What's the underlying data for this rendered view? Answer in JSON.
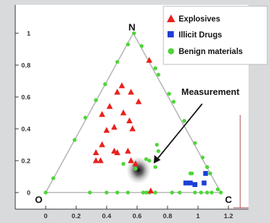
{
  "chart_data": {
    "type": "scatter",
    "title": "",
    "xlabel": "",
    "ylabel": "",
    "xlim": [
      -0.05,
      1.22
    ],
    "ylim": [
      -0.05,
      1.12
    ],
    "x_ticks": [
      "0",
      "0.2",
      "0.4",
      "0.6",
      "0.8",
      "1",
      "1.2"
    ],
    "y_ticks": [
      "0",
      "0.2",
      "0.4",
      "0.6",
      "0.8",
      "1"
    ],
    "x_tick_values": [
      0,
      0.2,
      0.4,
      0.6,
      0.8,
      1.0,
      1.2
    ],
    "y_tick_values": [
      0,
      0.2,
      0.4,
      0.6,
      0.8,
      1.0
    ],
    "triangle": {
      "vertices": [
        [
          0,
          0
        ],
        [
          1.15,
          0
        ],
        [
          0.575,
          1.0
        ]
      ],
      "labels": [
        "O",
        "C",
        "N"
      ]
    },
    "legend": {
      "placement": "top-right",
      "entries": [
        {
          "label": "Explosives",
          "marker": "triangle",
          "color": "#e8211d"
        },
        {
          "label": "Illicit Drugs",
          "marker": "square",
          "color": "#1f3fd6"
        },
        {
          "label": "Benign materials",
          "marker": "circle",
          "color": "#4fd63a"
        }
      ]
    },
    "series": [
      {
        "name": "Explosives",
        "marker": "triangle",
        "color": "#e8211d",
        "points": [
          [
            0.68,
            0.83
          ],
          [
            0.5,
            0.67
          ],
          [
            0.47,
            0.63
          ],
          [
            0.56,
            0.63
          ],
          [
            0.61,
            0.57
          ],
          [
            0.42,
            0.54
          ],
          [
            0.51,
            0.5
          ],
          [
            0.37,
            0.49
          ],
          [
            0.55,
            0.45
          ],
          [
            0.4,
            0.39
          ],
          [
            0.45,
            0.41
          ],
          [
            0.57,
            0.4
          ],
          [
            0.37,
            0.3
          ],
          [
            0.45,
            0.26
          ],
          [
            0.47,
            0.25
          ],
          [
            0.33,
            0.25
          ],
          [
            0.54,
            0.26
          ],
          [
            0.36,
            0.2
          ],
          [
            0.33,
            0.2
          ],
          [
            0.56,
            0.2
          ],
          [
            0.59,
            0.18
          ],
          [
            0.69,
            0.01
          ]
        ]
      },
      {
        "name": "Illicit Drugs",
        "marker": "square",
        "color": "#1f3fd6",
        "points": [
          [
            0.92,
            0.06
          ],
          [
            0.95,
            0.06
          ],
          [
            0.98,
            0.05
          ],
          [
            1.04,
            0.06
          ],
          [
            1.05,
            0.12
          ]
        ]
      },
      {
        "name": "Benign materials",
        "marker": "circle",
        "color": "#4fd63a",
        "points": [
          [
            0.0,
            0.0
          ],
          [
            0.29,
            0.0
          ],
          [
            0.4,
            0.0
          ],
          [
            0.47,
            0.0
          ],
          [
            0.54,
            0.0
          ],
          [
            0.64,
            0.0
          ],
          [
            0.66,
            0.0
          ],
          [
            0.68,
            0.0
          ],
          [
            0.72,
            0.0
          ],
          [
            0.83,
            0.0
          ],
          [
            0.88,
            0.0
          ],
          [
            0.98,
            0.0
          ],
          [
            1.02,
            0.0
          ],
          [
            1.06,
            0.0
          ],
          [
            1.09,
            0.0
          ],
          [
            1.15,
            0.0
          ],
          [
            0.05,
            0.09
          ],
          [
            0.19,
            0.33
          ],
          [
            0.26,
            0.47
          ],
          [
            0.33,
            0.58
          ],
          [
            0.39,
            0.68
          ],
          [
            0.47,
            0.82
          ],
          [
            0.54,
            0.93
          ],
          [
            0.58,
            1.0
          ],
          [
            0.63,
            0.92
          ],
          [
            0.72,
            0.78
          ],
          [
            0.74,
            0.74
          ],
          [
            0.81,
            0.62
          ],
          [
            0.84,
            0.57
          ],
          [
            0.91,
            0.45
          ],
          [
            0.98,
            0.31
          ],
          [
            1.03,
            0.22
          ],
          [
            1.06,
            0.16
          ],
          [
            1.08,
            0.12
          ],
          [
            1.13,
            0.02
          ],
          [
            0.73,
            0.3
          ],
          [
            0.74,
            0.26
          ],
          [
            0.66,
            0.21
          ],
          [
            0.68,
            0.2
          ],
          [
            0.72,
            0.16
          ],
          [
            0.95,
            0.12
          ],
          [
            0.96,
            0.12
          ],
          [
            0.51,
            0.18
          ],
          [
            0.59,
            0.15
          ]
        ]
      }
    ],
    "annotations": [
      {
        "text": "Measurement",
        "point": [
          0.61,
          0.14
        ]
      }
    ],
    "measurement_blob": {
      "center": [
        0.61,
        0.14
      ],
      "color": "#111111"
    }
  }
}
